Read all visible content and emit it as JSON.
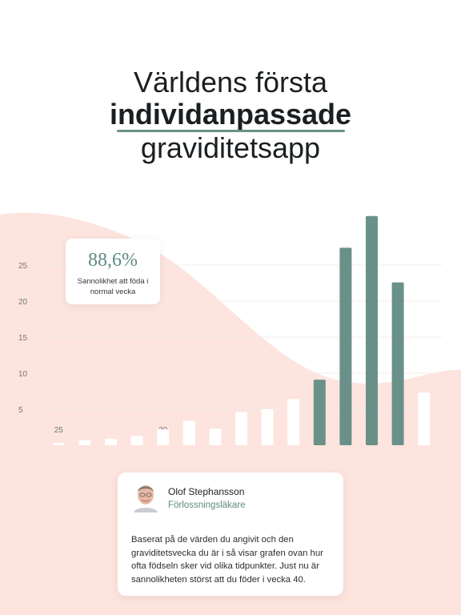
{
  "header": {
    "line1": "Världens första",
    "line2": "individanpassade",
    "line3": "graviditetsapp"
  },
  "chart_data": {
    "type": "bar",
    "categories": [
      "25",
      null,
      null,
      null,
      "30",
      null,
      null,
      null,
      null,
      null,
      null,
      null,
      null,
      null,
      null
    ],
    "values": [
      0.3,
      0.7,
      0.9,
      1.3,
      2.2,
      3.4,
      2.3,
      4.6,
      5.0,
      6.4,
      9.1,
      27.4,
      31.8,
      22.6,
      7.3
    ],
    "colors": [
      "#ffffff",
      "#ffffff",
      "#ffffff",
      "#ffffff",
      "#ffffff",
      "#ffffff",
      "#ffffff",
      "#ffffff",
      "#ffffff",
      "#ffffff",
      "#6a9189",
      "#6a9189",
      "#6a9189",
      "#6a9189",
      "#ffffff"
    ],
    "ylim": [
      0,
      32
    ],
    "yticks": [
      5,
      10,
      15,
      20,
      25
    ],
    "grid": true
  },
  "stat_card": {
    "value": "88,6%",
    "label": "Sannolikhet att föda i normal vecka"
  },
  "quote": {
    "name": "Olof Stephansson",
    "role": "Förlossningsläkare",
    "text": "Baserat på de värden du angivit och den graviditetsvecka du är i så visar grafen ovan hur ofta födseln sker vid olika tidpunkter. Just nu är sannolikheten störst att du föder i vecka 40."
  }
}
